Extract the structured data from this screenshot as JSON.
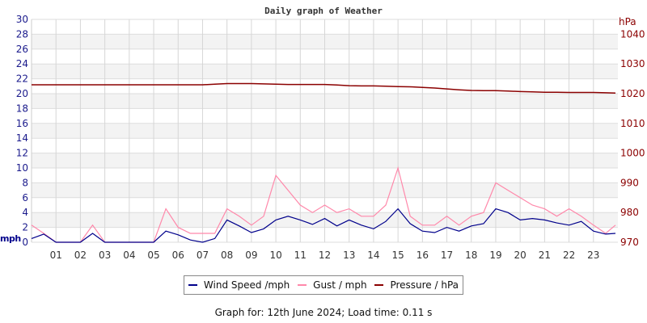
{
  "chart_data": {
    "type": "line",
    "title": "Daily graph of Weather",
    "ylabel_left": "mph",
    "ylabel_right": "hPa",
    "ylim_left": [
      0,
      30
    ],
    "ylim_right": [
      970,
      1045
    ],
    "yticks_left": [
      0,
      2,
      4,
      6,
      8,
      10,
      12,
      14,
      16,
      18,
      20,
      22,
      24,
      26,
      28,
      30
    ],
    "yticks_right": [
      970,
      980,
      990,
      1000,
      1010,
      1020,
      1030,
      1040
    ],
    "xticks": [
      "01",
      "02",
      "03",
      "04",
      "05",
      "06",
      "07",
      "08",
      "09",
      "10",
      "11",
      "12",
      "13",
      "14",
      "15",
      "16",
      "17",
      "18",
      "19",
      "20",
      "21",
      "22",
      "23"
    ],
    "xlim_hours": [
      0,
      24
    ],
    "grid": true,
    "legend_placement": "bottom",
    "x_hours": [
      0,
      0.5,
      1,
      1.5,
      2,
      2.5,
      3,
      3.5,
      4,
      4.5,
      5,
      5.5,
      6,
      6.5,
      7,
      7.5,
      8,
      8.5,
      9,
      9.5,
      10,
      10.5,
      11,
      11.5,
      12,
      12.5,
      13,
      13.5,
      14,
      14.5,
      15,
      15.5,
      16,
      16.5,
      17,
      17.5,
      18,
      18.5,
      19,
      19.5,
      20,
      20.5,
      21,
      21.5,
      22,
      22.5,
      23,
      23.5,
      23.9
    ],
    "series": [
      {
        "name": "Wind Speed /mph",
        "axis": "left",
        "color": "#00008b",
        "values": [
          0.5,
          1.1,
          0,
          0,
          0,
          1.2,
          0,
          0,
          0,
          0,
          0,
          1.5,
          1,
          0.3,
          0,
          0.5,
          3,
          2.2,
          1.3,
          1.8,
          3,
          3.5,
          3,
          2.4,
          3.2,
          2.2,
          3,
          2.3,
          1.8,
          2.8,
          4.5,
          2.5,
          1.5,
          1.3,
          2,
          1.5,
          2.2,
          2.5,
          4.5,
          4,
          3,
          3.2,
          3,
          2.6,
          2.3,
          2.8,
          1.5,
          1.1,
          1.2
        ]
      },
      {
        "name": "Gust / mph",
        "axis": "left",
        "color": "#ff88aa",
        "values": [
          2.3,
          1.2,
          0,
          0,
          0,
          2.3,
          0,
          0,
          0,
          0,
          0,
          4.5,
          2,
          1.2,
          1.2,
          1.2,
          4.5,
          3.5,
          2.3,
          3.5,
          9,
          7,
          5,
          4,
          5,
          4,
          4.5,
          3.5,
          3.5,
          5,
          10,
          3.5,
          2.3,
          2.3,
          3.5,
          2.3,
          3.5,
          4,
          8,
          7,
          6,
          5,
          4.5,
          3.5,
          4.5,
          3.5,
          2.3,
          1.2,
          2.3
        ]
      },
      {
        "name": "Pressure / hPa",
        "axis": "right",
        "color": "#8b0000",
        "values": [
          1023,
          1023,
          1023,
          1023,
          1023,
          1023,
          1023,
          1023,
          1023,
          1023,
          1023,
          1023,
          1023,
          1023,
          1023,
          1023.2,
          1023.4,
          1023.4,
          1023.4,
          1023.3,
          1023.2,
          1023.1,
          1023.1,
          1023.1,
          1023.1,
          1022.9,
          1022.7,
          1022.6,
          1022.6,
          1022.5,
          1022.4,
          1022.3,
          1022.1,
          1021.9,
          1021.6,
          1021.3,
          1021.1,
          1021,
          1021,
          1020.9,
          1020.7,
          1020.6,
          1020.5,
          1020.5,
          1020.4,
          1020.4,
          1020.4,
          1020.3,
          1020.2
        ]
      }
    ]
  },
  "footer": "Graph for: 12th June 2024; Load time: 0.11 s"
}
